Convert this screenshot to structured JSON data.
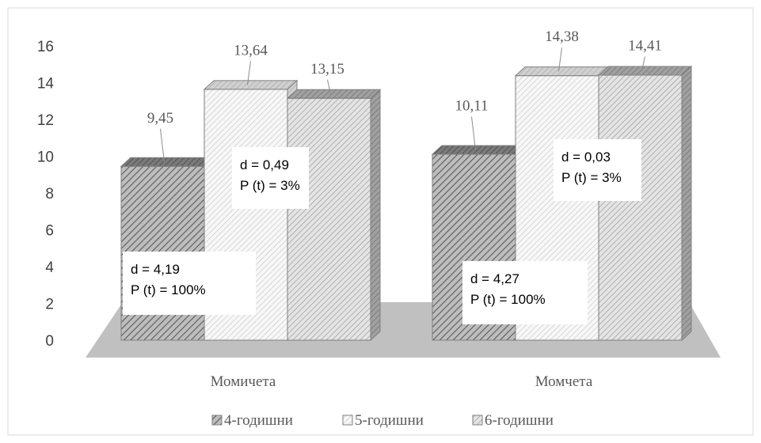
{
  "chart_data": {
    "type": "bar",
    "categories": [
      "Момичета",
      "Момчета"
    ],
    "series": [
      {
        "name": "4-годишни",
        "values": [
          9.45,
          10.11
        ],
        "labels": [
          "9,45",
          "10,11"
        ],
        "color": "#6b6b6b"
      },
      {
        "name": "5-годишни",
        "values": [
          13.64,
          14.38
        ],
        "labels": [
          "13,64",
          "14,38"
        ],
        "color": "#d4d4d4"
      },
      {
        "name": "6-годишни",
        "values": [
          13.15,
          14.41
        ],
        "labels": [
          "13,15",
          "14,41"
        ],
        "color": "#a6a6a6"
      }
    ],
    "ylim": [
      0,
      16
    ],
    "yticks": [
      0,
      2,
      4,
      6,
      8,
      10,
      12,
      14,
      16
    ],
    "legend_position": "bottom",
    "grid": false,
    "annotations": [
      {
        "category": "Момичета",
        "lines": [
          "d = 4,19",
          "P (t) = 100%"
        ]
      },
      {
        "category": "Момичета",
        "lines": [
          "d = 0,49",
          "P (t) = 3%"
        ]
      },
      {
        "category": "Момчета",
        "lines": [
          "d = 4,27",
          "P (t) = 100%"
        ]
      },
      {
        "category": "Момчета",
        "lines": [
          "d = 0,03",
          "P (t) = 3%"
        ]
      }
    ]
  }
}
